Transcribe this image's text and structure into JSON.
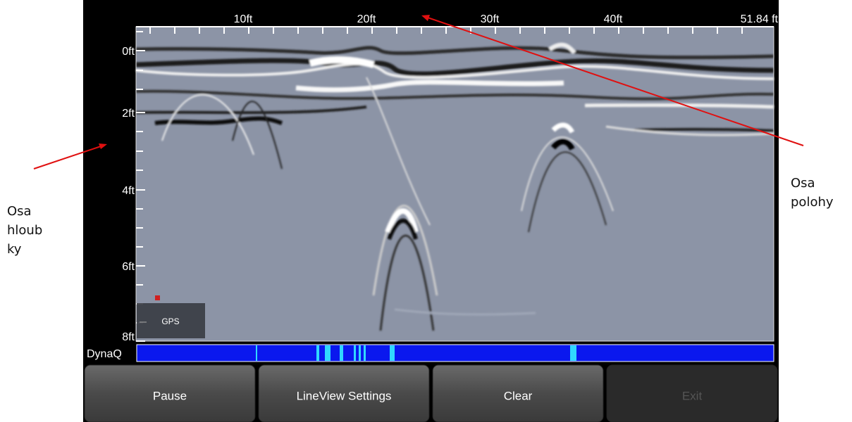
{
  "annotations": {
    "depth_axis": [
      "Osa",
      "hloub",
      "ky"
    ],
    "position_axis": [
      "Osa",
      "polohy"
    ]
  },
  "screen": {
    "top_axis_labels": [
      "10ft",
      "20ft",
      "30ft",
      "40ft",
      "51.84 ft"
    ],
    "left_axis_labels": [
      "0ft",
      "2ft",
      "4ft",
      "6ft",
      "8ft"
    ],
    "gps_label": "GPS",
    "dynaq_label": "DynaQ",
    "buttons": [
      "Pause",
      "LineView Settings",
      "Clear",
      "Exit"
    ]
  }
}
